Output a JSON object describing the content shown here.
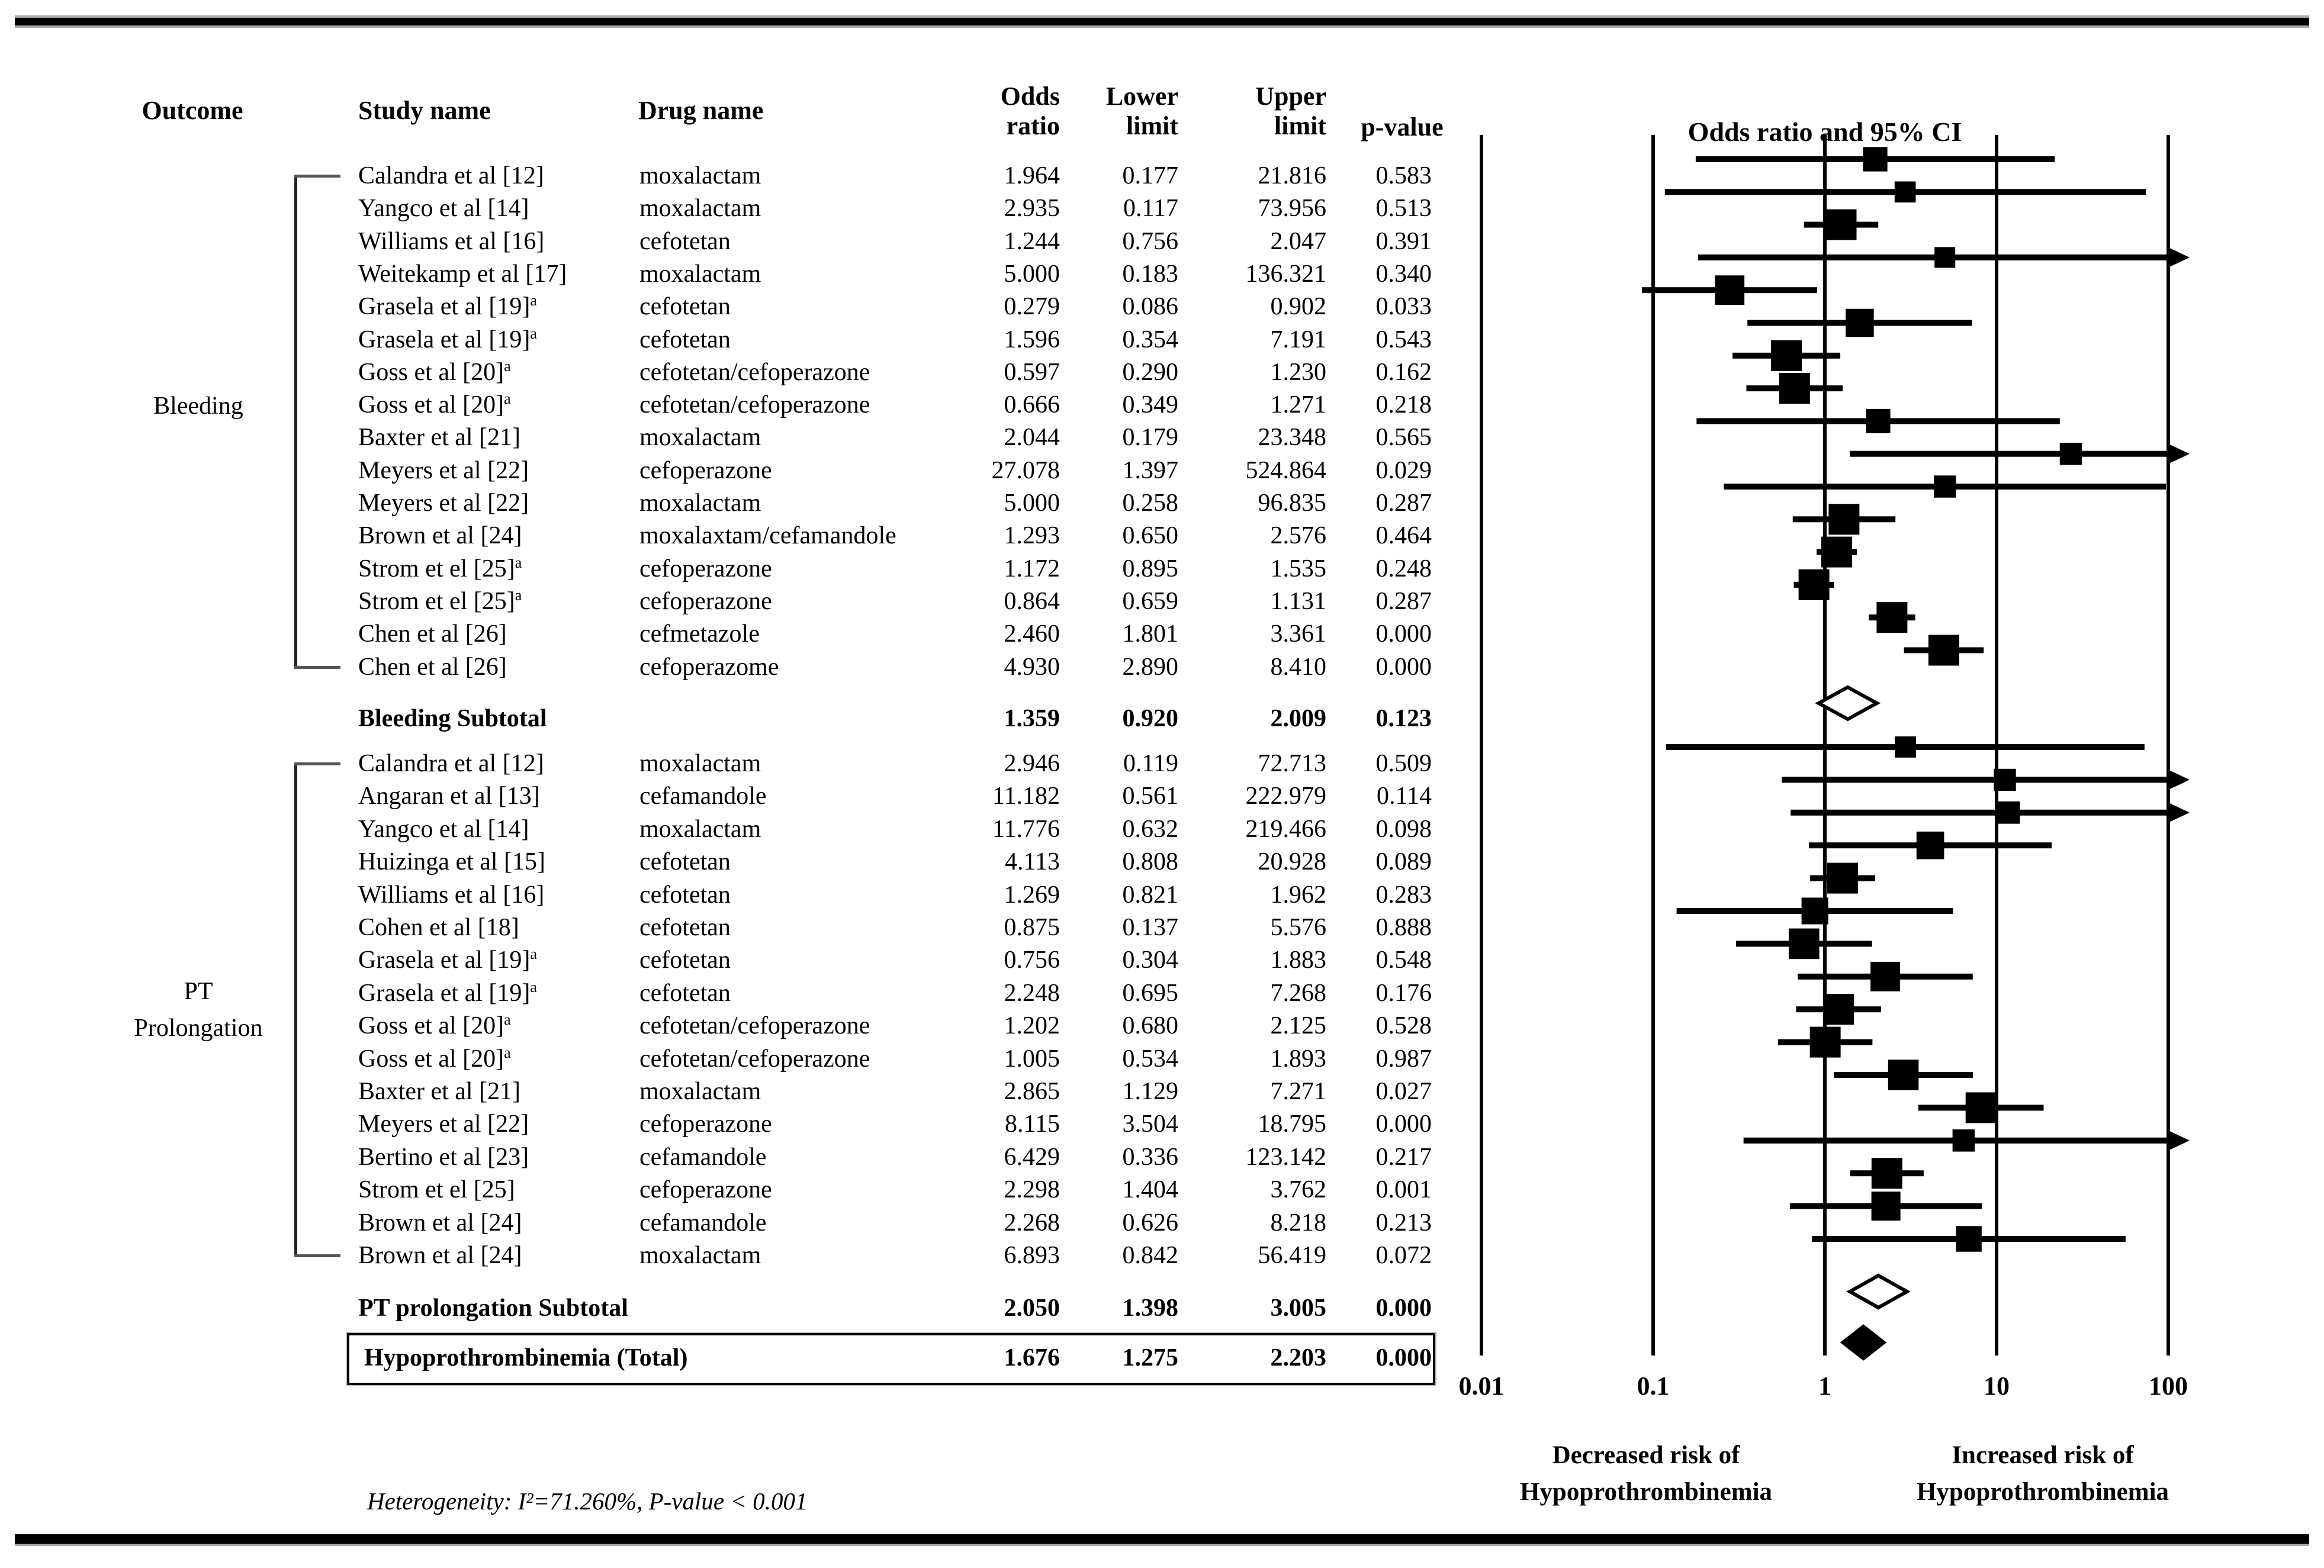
{
  "header": {
    "outcome": "Outcome",
    "study": "Study name",
    "drug": "Drug name",
    "odds_line1": "Odds",
    "odds_line2": "ratio",
    "lower_line1": "Lower",
    "lower_line2": "limit",
    "upper_line1": "Upper",
    "upper_line2": "limit",
    "p_value": "p-value",
    "ci_header": "Odds ratio and 95% CI"
  },
  "chart_data": {
    "type": "forest",
    "x_axis": {
      "scale": "log",
      "ticks": [
        "0.01",
        "0.1",
        "1",
        "10",
        "100"
      ],
      "min": 0.01,
      "max": 100
    },
    "sections": [
      {
        "outcome_lines": [
          "Bleeding"
        ],
        "studies": [
          {
            "study": "Calandra et al [12]",
            "sup": "",
            "drug": "moxalactam",
            "or": "1.964",
            "ll": "0.177",
            "ul": "21.816",
            "p": "0.583"
          },
          {
            "study": "Yangco et al [14]",
            "sup": "",
            "drug": "moxalactam",
            "or": "2.935",
            "ll": "0.117",
            "ul": "73.956",
            "p": "0.513"
          },
          {
            "study": "Williams et al [16]",
            "sup": "",
            "drug": "cefotetan",
            "or": "1.244",
            "ll": "0.756",
            "ul": "2.047",
            "p": "0.391"
          },
          {
            "study": "Weitekamp et al [17]",
            "sup": "",
            "drug": "moxalactam",
            "or": "5.000",
            "ll": "0.183",
            "ul": "136.321",
            "p": "0.340"
          },
          {
            "study": "Grasela et al [19]",
            "sup": "a",
            "drug": "cefotetan",
            "or": "0.279",
            "ll": "0.086",
            "ul": "0.902",
            "p": "0.033"
          },
          {
            "study": "Grasela et al [19]",
            "sup": "a",
            "drug": "cefotetan",
            "or": "1.596",
            "ll": "0.354",
            "ul": "7.191",
            "p": "0.543"
          },
          {
            "study": "Goss et al [20]",
            "sup": "a",
            "drug": "cefotetan/cefoperazone",
            "or": "0.597",
            "ll": "0.290",
            "ul": "1.230",
            "p": "0.162"
          },
          {
            "study": "Goss et al [20]",
            "sup": "a",
            "drug": "cefotetan/cefoperazone",
            "or": "0.666",
            "ll": "0.349",
            "ul": "1.271",
            "p": "0.218"
          },
          {
            "study": "Baxter et al [21]",
            "sup": "",
            "drug": "moxalactam",
            "or": "2.044",
            "ll": "0.179",
            "ul": "23.348",
            "p": "0.565"
          },
          {
            "study": "Meyers et al [22]",
            "sup": "",
            "drug": "cefoperazone",
            "or": "27.078",
            "ll": "1.397",
            "ul": "524.864",
            "p": "0.029"
          },
          {
            "study": "Meyers et al [22]",
            "sup": "",
            "drug": "moxalactam",
            "or": "5.000",
            "ll": "0.258",
            "ul": "96.835",
            "p": "0.287"
          },
          {
            "study": "Brown et al [24]",
            "sup": "",
            "drug": "moxalaxtam/cefamandole",
            "or": "1.293",
            "ll": "0.650",
            "ul": "2.576",
            "p": "0.464"
          },
          {
            "study": "Strom et el [25]",
            "sup": "a",
            "drug": "cefoperazone",
            "or": "1.172",
            "ll": "0.895",
            "ul": "1.535",
            "p": "0.248"
          },
          {
            "study": "Strom et el [25]",
            "sup": "a",
            "drug": "cefoperazone",
            "or": "0.864",
            "ll": "0.659",
            "ul": "1.131",
            "p": "0.287"
          },
          {
            "study": "Chen et al [26]",
            "sup": "",
            "drug": "cefmetazole",
            "or": "2.460",
            "ll": "1.801",
            "ul": "3.361",
            "p": "0.000"
          },
          {
            "study": "Chen et al [26]",
            "sup": "",
            "drug": "cefoperazome",
            "or": "4.930",
            "ll": "2.890",
            "ul": "8.410",
            "p": "0.000"
          }
        ],
        "subtotal": {
          "label": "Bleeding Subtotal",
          "or": "1.359",
          "ll": "0.920",
          "ul": "2.009",
          "p": "0.123"
        }
      },
      {
        "outcome_lines": [
          "PT",
          "Prolongation"
        ],
        "studies": [
          {
            "study": "Calandra et al [12]",
            "sup": "",
            "drug": "moxalactam",
            "or": "2.946",
            "ll": "0.119",
            "ul": "72.713",
            "p": "0.509"
          },
          {
            "study": "Angaran et al [13]",
            "sup": "",
            "drug": "cefamandole",
            "or": "11.182",
            "ll": "0.561",
            "ul": "222.979",
            "p": "0.114"
          },
          {
            "study": "Yangco et al [14]",
            "sup": "",
            "drug": "moxalactam",
            "or": "11.776",
            "ll": "0.632",
            "ul": "219.466",
            "p": "0.098"
          },
          {
            "study": "Huizinga et al [15]",
            "sup": "",
            "drug": "cefotetan",
            "or": "4.113",
            "ll": "0.808",
            "ul": "20.928",
            "p": "0.089"
          },
          {
            "study": "Williams et al [16]",
            "sup": "",
            "drug": "cefotetan",
            "or": "1.269",
            "ll": "0.821",
            "ul": "1.962",
            "p": "0.283"
          },
          {
            "study": "Cohen et al [18]",
            "sup": "",
            "drug": "cefotetan",
            "or": "0.875",
            "ll": "0.137",
            "ul": "5.576",
            "p": "0.888"
          },
          {
            "study": "Grasela et al [19]",
            "sup": "a",
            "drug": "cefotetan",
            "or": "0.756",
            "ll": "0.304",
            "ul": "1.883",
            "p": "0.548"
          },
          {
            "study": "Grasela et al [19]",
            "sup": "a",
            "drug": "cefotetan",
            "or": "2.248",
            "ll": "0.695",
            "ul": "7.268",
            "p": "0.176"
          },
          {
            "study": "Goss et al [20]",
            "sup": "a",
            "drug": "cefotetan/cefoperazone",
            "or": "1.202",
            "ll": "0.680",
            "ul": "2.125",
            "p": "0.528"
          },
          {
            "study": "Goss et al [20]",
            "sup": "a",
            "drug": "cefotetan/cefoperazone",
            "or": "1.005",
            "ll": "0.534",
            "ul": "1.893",
            "p": "0.987"
          },
          {
            "study": "Baxter et al [21]",
            "sup": "",
            "drug": "moxalactam",
            "or": "2.865",
            "ll": "1.129",
            "ul": "7.271",
            "p": "0.027"
          },
          {
            "study": "Meyers et al [22]",
            "sup": "",
            "drug": "cefoperazone",
            "or": "8.115",
            "ll": "3.504",
            "ul": "18.795",
            "p": "0.000"
          },
          {
            "study": "Bertino et al [23]",
            "sup": "",
            "drug": "cefamandole",
            "or": "6.429",
            "ll": "0.336",
            "ul": "123.142",
            "p": "0.217"
          },
          {
            "study": "Strom et el [25]",
            "sup": "",
            "drug": "cefoperazone",
            "or": "2.298",
            "ll": "1.404",
            "ul": "3.762",
            "p": "0.001"
          },
          {
            "study": "Brown et al [24]",
            "sup": "",
            "drug": "cefamandole",
            "or": "2.268",
            "ll": "0.626",
            "ul": "8.218",
            "p": "0.213"
          },
          {
            "study": "Brown et al [24]",
            "sup": "",
            "drug": "moxalactam",
            "or": "6.893",
            "ll": "0.842",
            "ul": "56.419",
            "p": "0.072"
          }
        ],
        "subtotal": {
          "label": "PT prolongation Subtotal",
          "or": "2.050",
          "ll": "1.398",
          "ul": "3.005",
          "p": "0.000"
        }
      }
    ],
    "total": {
      "label": "Hypoprothrombinemia (Total)",
      "or": "1.676",
      "ll": "1.275",
      "ul": "2.203",
      "p": "0.000"
    },
    "risk_labels": {
      "left": [
        "Decreased risk of",
        "Hypoprothrombinemia"
      ],
      "right": [
        "Increased risk of",
        "Hypoprothrombinemia"
      ]
    },
    "footnote": "Heterogeneity: I²=71.260%, P-value < 0.001",
    "marker_color": "#000000",
    "legend_position": "none",
    "grid": true
  }
}
